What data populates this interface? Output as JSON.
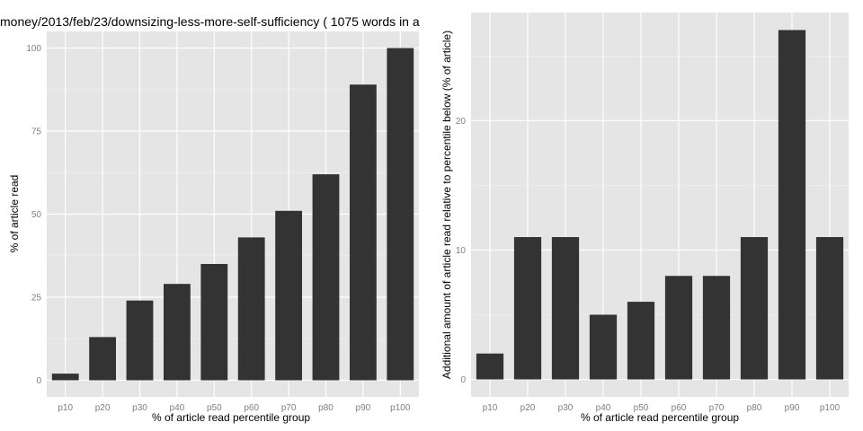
{
  "chart_data": [
    {
      "type": "bar",
      "title": "money/2013/feb/23/downsizing-less-more-self-sufficiency ( 1075 words in a",
      "xlabel": "% of article read percentile group",
      "ylabel": "% of article read",
      "categories": [
        "p10",
        "p20",
        "p30",
        "p40",
        "p50",
        "p60",
        "p70",
        "p80",
        "p90",
        "p100"
      ],
      "values": [
        2,
        13,
        24,
        29,
        35,
        43,
        51,
        62,
        89,
        100
      ],
      "ylim": [
        -5,
        105
      ],
      "yticks": [
        0,
        25,
        50,
        75,
        100
      ],
      "grid": true,
      "bar_color": "#333333",
      "panel_color": "#e5e5e5"
    },
    {
      "type": "bar",
      "title": "",
      "xlabel": "% of article read percentile group",
      "ylabel": "Additional amount of article read relative to percentile below (% of article)",
      "categories": [
        "p10",
        "p20",
        "p30",
        "p40",
        "p50",
        "p60",
        "p70",
        "p80",
        "p90",
        "p100"
      ],
      "values": [
        2,
        11,
        11,
        5,
        6,
        8,
        8,
        11,
        27,
        11
      ],
      "ylim": [
        -1.35,
        28.35
      ],
      "yticks": [
        0,
        10,
        20
      ],
      "grid": true,
      "bar_color": "#333333",
      "panel_color": "#e5e5e5"
    }
  ]
}
